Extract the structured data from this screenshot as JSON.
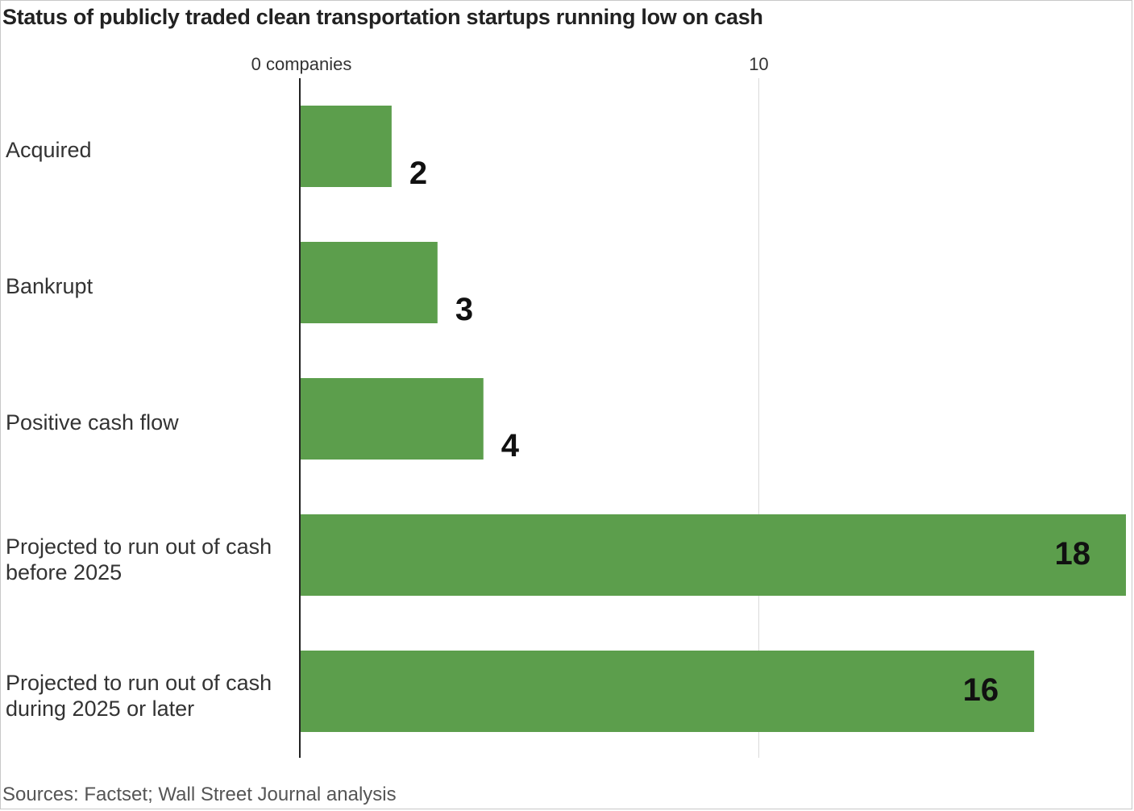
{
  "chart_data": {
    "type": "bar",
    "orientation": "horizontal",
    "title": "Status of publicly traded clean transportation startups running low on cash",
    "categories": [
      "Acquired",
      "Bankrupt",
      "Positive cash flow",
      "Projected to run out of cash before 2025",
      "Projected to run out of cash during 2025 or later"
    ],
    "category_lines": [
      [
        "Acquired"
      ],
      [
        "Bankrupt"
      ],
      [
        "Positive cash flow"
      ],
      [
        "Projected to run out of cash",
        "before 2025"
      ],
      [
        "Projected to run out of cash",
        "during 2025 or later"
      ]
    ],
    "values": [
      2,
      3,
      4,
      18,
      16
    ],
    "xlim": [
      0,
      18
    ],
    "ticks": [
      {
        "value": 0,
        "label": "0 companies"
      },
      {
        "value": 10,
        "label": "10"
      }
    ],
    "grid": true,
    "color": "#5c9e4c",
    "source": "Sources: Factset; Wall Street Journal analysis"
  }
}
